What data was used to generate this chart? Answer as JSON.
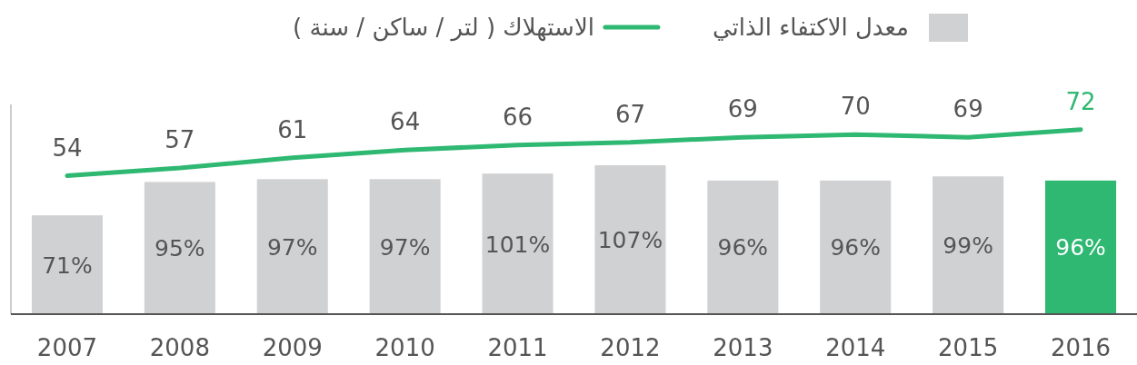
{
  "chart_data": {
    "type": "bar",
    "categories": [
      "2007",
      "2008",
      "2009",
      "2010",
      "2011",
      "2012",
      "2013",
      "2014",
      "2015",
      "2016"
    ],
    "series": [
      {
        "name": "معدل الاكتفاء الذاتي",
        "color": "#d0d1d3",
        "colors": [
          "#d0d1d3",
          "#d0d1d3",
          "#d0d1d3",
          "#d0d1d3",
          "#d0d1d3",
          "#d0d1d3",
          "#d0d1d3",
          "#d0d1d3",
          "#d0d1d3",
          "#2eb872"
        ],
        "values": [
          71,
          95,
          97,
          97,
          101,
          107,
          96,
          96,
          99,
          96
        ],
        "value_labels": [
          "71%",
          "95%",
          "97%",
          "97%",
          "101%",
          "107%",
          "96%",
          "96%",
          "99%",
          "96%"
        ]
      },
      {
        "name": "الاستهلاك ( لتر / ساكن / سنة )",
        "type": "line",
        "axis": "y2",
        "color": "#2eb872",
        "values": [
          54,
          57,
          61,
          64,
          66,
          67,
          69,
          70,
          69,
          72
        ],
        "value_labels": [
          "54",
          "57",
          "61",
          "64",
          "66",
          "67",
          "69",
          "70",
          "69",
          "72"
        ]
      }
    ],
    "legend": "top",
    "grid": false
  }
}
